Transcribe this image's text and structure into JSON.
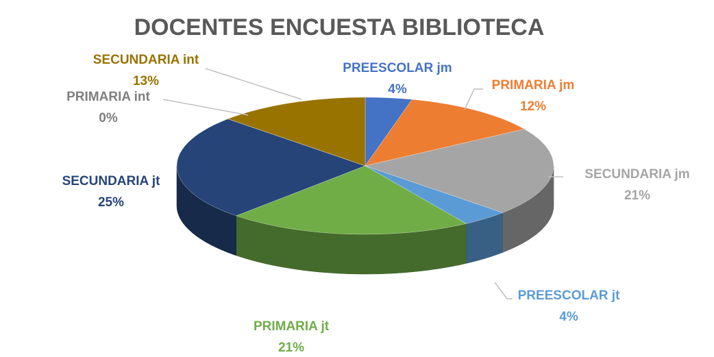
{
  "chart_data": {
    "type": "pie",
    "title": "DOCENTES ENCUESTA BIBLIOTECA",
    "categories": [
      "PREESCOLAR jm",
      "PRIMARIA jm",
      "SECUNDARIA jm",
      "PREESCOLAR jt",
      "PRIMARIA jt",
      "SECUNDARIA jt",
      "PRIMARIA int",
      "SECUNDARIA int"
    ],
    "values": [
      4,
      12,
      21,
      4,
      21,
      25,
      0,
      13
    ],
    "value_labels": [
      "4%",
      "12%",
      "21%",
      "4%",
      "21%",
      "25%",
      "0%",
      "13%"
    ],
    "colors": [
      "#4472c4",
      "#ed7d31",
      "#a5a5a5",
      "#5b9bd5",
      "#70ad47",
      "#264478",
      "#7f7f7f",
      "#997300"
    ]
  }
}
